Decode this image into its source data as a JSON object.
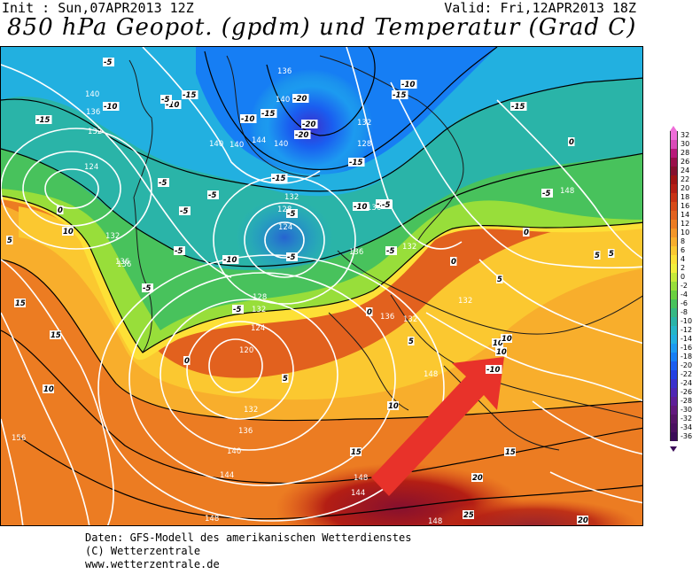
{
  "header": {
    "init": "Init : Sun,07APR2013 12Z",
    "valid": "Valid: Fri,12APR2013 18Z",
    "title": "850 hPa Geopot. (gpdm) und Temperatur (Grad C)"
  },
  "footer": {
    "line1": "Daten: GFS-Modell des amerikanischen Wetterdienstes",
    "line2": "(C) Wetterzentrale",
    "line3": "www.wetterzentrale.de"
  },
  "legend": {
    "items": [
      {
        "label": "32",
        "color": "#ee6dd8"
      },
      {
        "label": "30",
        "color": "#d94ab8"
      },
      {
        "label": "28",
        "color": "#b8197a"
      },
      {
        "label": "26",
        "color": "#9a0f4a"
      },
      {
        "label": "24",
        "color": "#86102e"
      },
      {
        "label": "22",
        "color": "#a01414"
      },
      {
        "label": "20",
        "color": "#b41e14"
      },
      {
        "label": "18",
        "color": "#c83214"
      },
      {
        "label": "16",
        "color": "#d74a18"
      },
      {
        "label": "14",
        "color": "#e2611e"
      },
      {
        "label": "12",
        "color": "#ec7c22"
      },
      {
        "label": "10",
        "color": "#f39628"
      },
      {
        "label": "8",
        "color": "#f8ae2c"
      },
      {
        "label": "6",
        "color": "#fbc830"
      },
      {
        "label": "4",
        "color": "#fde036"
      },
      {
        "label": "2",
        "color": "#f2ef3c"
      },
      {
        "label": "0",
        "color": "#c6ea3a"
      },
      {
        "label": "-2",
        "color": "#98de3a"
      },
      {
        "label": "-4",
        "color": "#6ad040"
      },
      {
        "label": "-6",
        "color": "#48c25c"
      },
      {
        "label": "-8",
        "color": "#36b884"
      },
      {
        "label": "-10",
        "color": "#2ab4a8"
      },
      {
        "label": "-12",
        "color": "#26b6c8"
      },
      {
        "label": "-14",
        "color": "#22b0e0"
      },
      {
        "label": "-16",
        "color": "#1c9af0"
      },
      {
        "label": "-18",
        "color": "#167ef4"
      },
      {
        "label": "-20",
        "color": "#1a5ef0"
      },
      {
        "label": "-22",
        "color": "#2440e2"
      },
      {
        "label": "-24",
        "color": "#3a30cc"
      },
      {
        "label": "-26",
        "color": "#4e26b4"
      },
      {
        "label": "-28",
        "color": "#5e1e98"
      },
      {
        "label": "-30",
        "color": "#62187e"
      },
      {
        "label": "-32",
        "color": "#561468"
      },
      {
        "label": "-34",
        "color": "#4a1060"
      },
      {
        "label": "-36",
        "color": "#3a0c58"
      }
    ]
  },
  "map": {
    "arrow_color": "#e8322a",
    "geopotential_labels": [
      "136",
      "140",
      "136",
      "132",
      "140",
      "144",
      "140",
      "140",
      "132",
      "128",
      "124",
      "132",
      "128",
      "124",
      "136",
      "132",
      "136",
      "132",
      "136",
      "132",
      "128",
      "124",
      "120",
      "132",
      "136",
      "140",
      "144",
      "148",
      "148",
      "144",
      "148",
      "148",
      "156",
      "136",
      "132",
      "148",
      "136",
      "140",
      "132"
    ],
    "temperature_labels": [
      "-5",
      "-15",
      "-10",
      "-10",
      "-15",
      "-5",
      "-20",
      "-20",
      "-10",
      "-15",
      "-15",
      "-10",
      "-15",
      "-15",
      "-5",
      "-5",
      "-5",
      "-10",
      "-5",
      "-10",
      "-5",
      "-5",
      "-15",
      "-10",
      "-5",
      "-5",
      "0",
      "-5",
      "0",
      "0",
      "0",
      "5",
      "5",
      "5",
      "0",
      "5",
      "10",
      "10",
      "10",
      "10",
      "15",
      "15",
      "15",
      "15",
      "20",
      "25",
      "20",
      "5",
      "10",
      "5",
      "-10",
      "-5",
      "0",
      "-5",
      "-20",
      "10"
    ]
  }
}
